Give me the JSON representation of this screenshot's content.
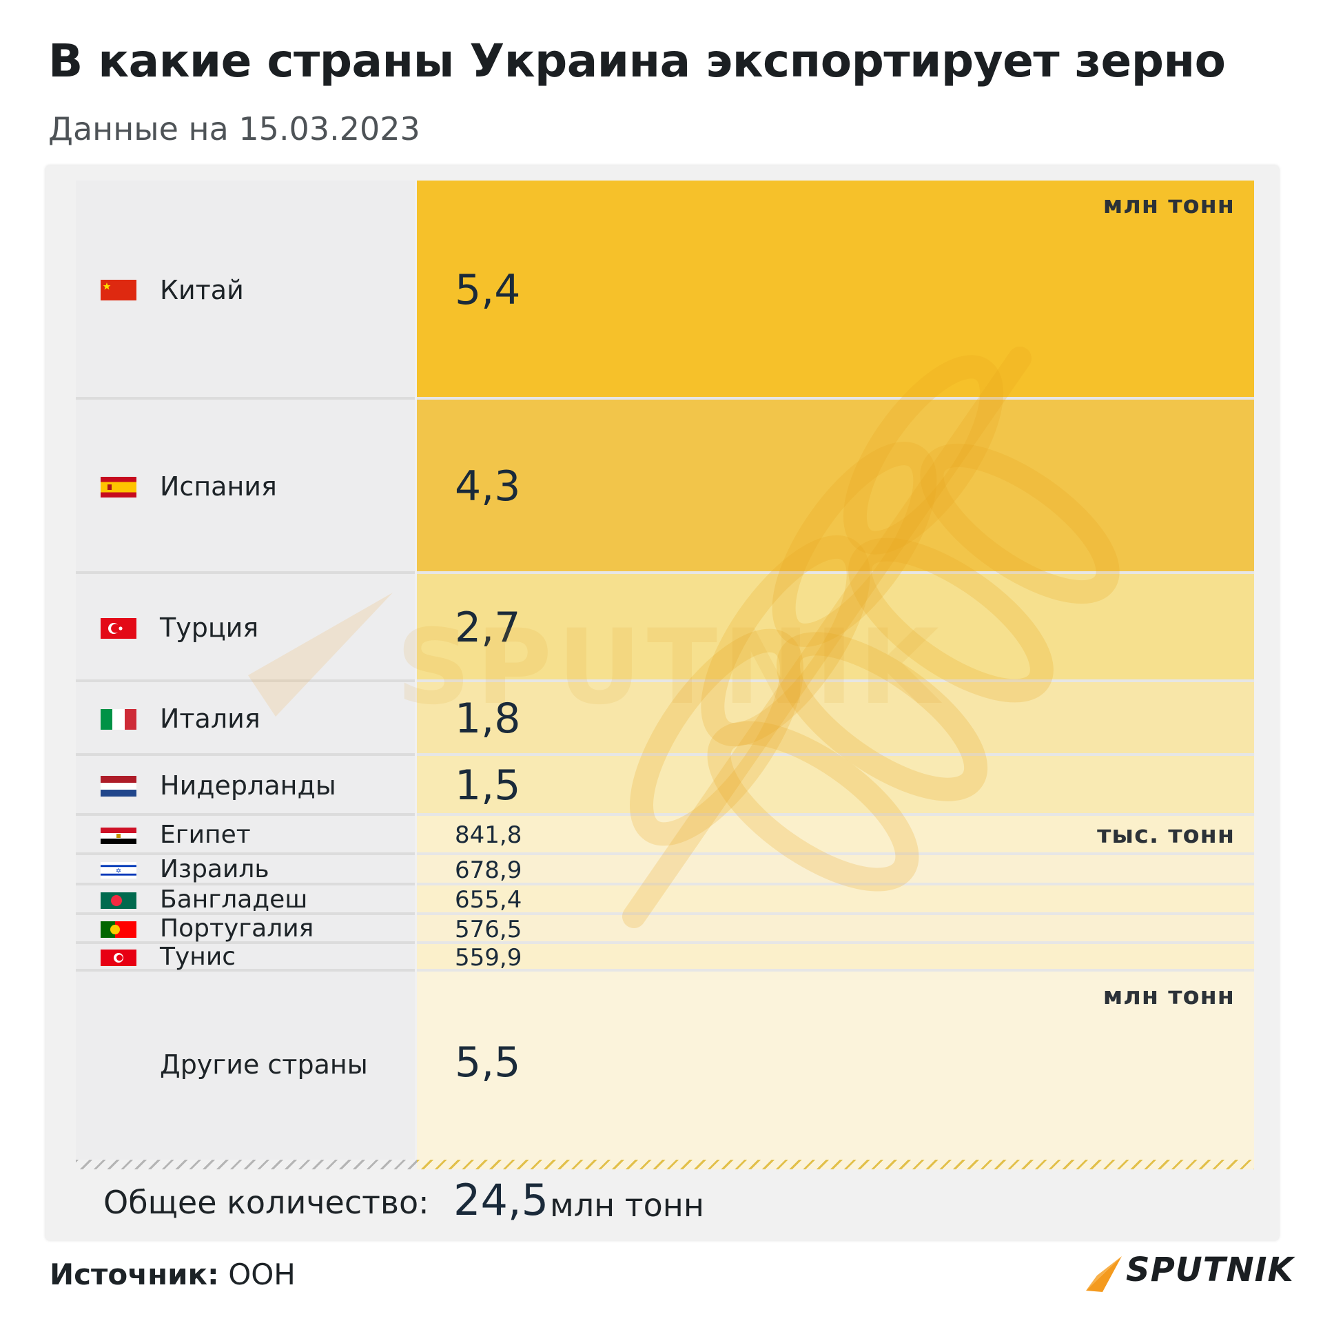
{
  "title": "В какие страны Украина экспортирует зерно",
  "subtitle": "Данные на 15.03.2023",
  "chart_data": {
    "type": "table",
    "title": "В какие страны Украина экспортирует зерно",
    "subtitle": "Данные на 15.03.2023",
    "rows": [
      {
        "country": "Китай",
        "value": 5.4,
        "display": "5,4",
        "unit": "млн тонн",
        "flag": "china-flag"
      },
      {
        "country": "Испания",
        "value": 4.3,
        "display": "4,3",
        "unit": "",
        "flag": "spain-flag"
      },
      {
        "country": "Турция",
        "value": 2.7,
        "display": "2,7",
        "unit": "",
        "flag": "turkey-flag"
      },
      {
        "country": "Италия",
        "value": 1.8,
        "display": "1,8",
        "unit": "",
        "flag": "italy-flag"
      },
      {
        "country": "Нидерланды",
        "value": 1.5,
        "display": "1,5",
        "unit": "",
        "flag": "netherlands-flag"
      },
      {
        "country": "Египет",
        "value": 841.8,
        "display": "841,8",
        "unit": "тыс. тонн",
        "flag": "egypt-flag"
      },
      {
        "country": "Израиль",
        "value": 678.9,
        "display": "678,9",
        "unit": "",
        "flag": "israel-flag"
      },
      {
        "country": "Бангладеш",
        "value": 655.4,
        "display": "655,4",
        "unit": "",
        "flag": "bangladesh-flag"
      },
      {
        "country": "Португалия",
        "value": 576.5,
        "display": "576,5",
        "unit": "",
        "flag": "portugal-flag"
      },
      {
        "country": "Тунис",
        "value": 559.9,
        "display": "559,9",
        "unit": "",
        "flag": "tunisia-flag"
      },
      {
        "country": "Другие страны",
        "value": 5.5,
        "display": "5,5",
        "unit": "млн тонн",
        "flag": ""
      }
    ],
    "total": {
      "label": "Общее количество:",
      "value": 24.5,
      "display": "24,5",
      "unit": "млн тонн"
    }
  },
  "footer": {
    "source_label": "Источник:",
    "source_value": "ООН",
    "logo_text": "SPUTNIK"
  },
  "watermark_text": "SPUTNIK",
  "colors": {
    "bar_1": "#f6c12a",
    "bar_2": "#f2c54a",
    "bar_3": "#f6e08e",
    "bar_4": "#f8e6a8",
    "bar_5": "#f9eab3",
    "bar_small": "#fbf0cb",
    "bar_small_alt": "#faf0d2",
    "bar_other": "#fbf3db",
    "accent_orange": "#f49a1e",
    "text_dark": "#1a2a3a"
  }
}
